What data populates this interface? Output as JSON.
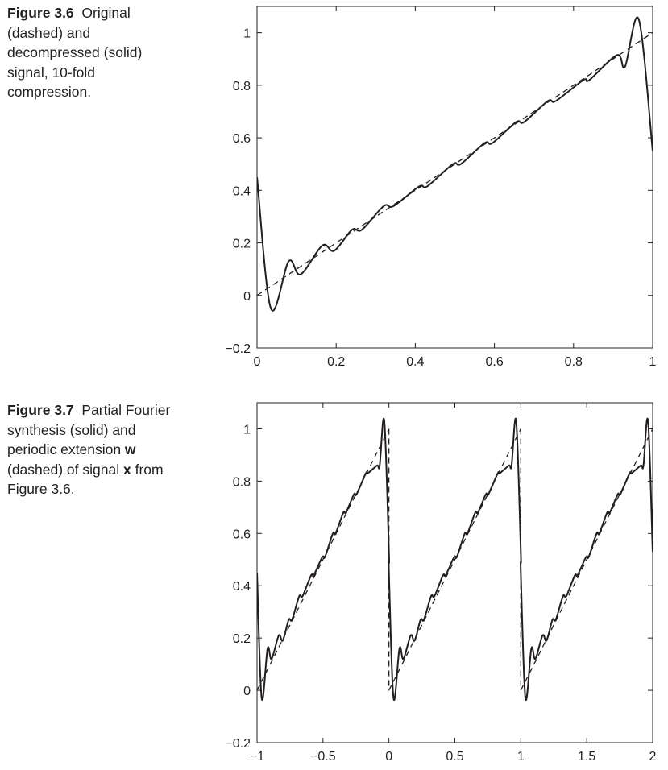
{
  "figures": [
    {
      "caption_label": "Figure 3.6",
      "caption_text_1": "Original",
      "caption_text_2": "(dashed) and",
      "caption_text_3": "decompressed (solid)",
      "caption_text_4": "signal, 10-fold",
      "caption_text_5": "compression."
    },
    {
      "caption_label": "Figure 3.7",
      "caption_text_1": "Partial Fourier",
      "caption_text_2": "synthesis (solid) and",
      "caption_text_3": "periodic extension ",
      "caption_bold_w": "w",
      "caption_text_4": "(dashed) of signal ",
      "caption_bold_x": "x",
      "caption_text_4b": " from",
      "caption_text_5": "Figure 3.6."
    }
  ],
  "chart_data": [
    {
      "type": "line",
      "title": "",
      "xlabel": "",
      "ylabel": "",
      "xlim": [
        0,
        1
      ],
      "ylim": [
        -0.2,
        1.1
      ],
      "x_ticks": [
        "0",
        "0.2",
        "0.4",
        "0.6",
        "0.8",
        "1"
      ],
      "y_ticks": [
        "−0.2",
        "0",
        "0.2",
        "0.4",
        "0.6",
        "0.8",
        "1"
      ],
      "x_tick_values": [
        0,
        0.2,
        0.4,
        0.6,
        0.8,
        1
      ],
      "y_tick_values": [
        -0.2,
        0,
        0.2,
        0.4,
        0.6,
        0.8,
        1
      ],
      "grid": false,
      "series": [
        {
          "style": "dashed",
          "description_values": "y = x on [0, 1]",
          "x": [
            0,
            1
          ],
          "y": [
            0,
            1
          ]
        },
        {
          "style": "solid",
          "x": [
            0,
            0.035,
            0.08,
            0.11,
            0.165,
            0.195,
            0.24,
            0.265,
            0.32,
            0.345,
            0.41,
            0.43,
            0.495,
            0.515,
            0.575,
            0.595,
            0.655,
            0.675,
            0.735,
            0.755,
            0.825,
            0.84,
            0.91,
            0.93,
            0.965,
            1
          ],
          "y": [
            0.45,
            -0.05,
            0.13,
            0.08,
            0.19,
            0.17,
            0.25,
            0.25,
            0.34,
            0.34,
            0.415,
            0.415,
            0.5,
            0.5,
            0.58,
            0.58,
            0.66,
            0.66,
            0.74,
            0.74,
            0.82,
            0.82,
            0.915,
            0.87,
            1.05,
            0.55
          ]
        }
      ]
    },
    {
      "type": "line",
      "title": "",
      "xlabel": "",
      "ylabel": "",
      "xlim": [
        -1,
        2
      ],
      "ylim": [
        -0.2,
        1.1
      ],
      "x_ticks": [
        "−1",
        "−0.5",
        "0",
        "0.5",
        "1",
        "1.5",
        "2"
      ],
      "y_ticks": [
        "−0.2",
        "0",
        "0.2",
        "0.4",
        "0.6",
        "0.8",
        "1"
      ],
      "x_tick_values": [
        -1,
        -0.5,
        0,
        0.5,
        1,
        1.5,
        2
      ],
      "y_tick_values": [
        -0.2,
        0,
        0.2,
        0.4,
        0.6,
        0.8,
        1
      ],
      "grid": false,
      "periods": [
        -1,
        0,
        1
      ],
      "series": [
        {
          "style": "dashed",
          "x": [
            0,
            1
          ],
          "y": [
            0,
            1
          ]
        },
        {
          "style": "solid",
          "x": [
            0,
            0.035,
            0.08,
            0.11,
            0.165,
            0.195,
            0.24,
            0.265,
            0.32,
            0.345,
            0.41,
            0.43,
            0.495,
            0.515,
            0.575,
            0.595,
            0.655,
            0.675,
            0.735,
            0.755,
            0.825,
            0.84,
            0.91,
            0.93,
            0.965,
            1
          ],
          "y": [
            0.45,
            -0.03,
            0.16,
            0.12,
            0.21,
            0.19,
            0.27,
            0.27,
            0.36,
            0.36,
            0.44,
            0.44,
            0.51,
            0.51,
            0.6,
            0.6,
            0.68,
            0.68,
            0.75,
            0.75,
            0.83,
            0.83,
            0.86,
            0.86,
            1.03,
            0.53
          ]
        }
      ]
    }
  ]
}
